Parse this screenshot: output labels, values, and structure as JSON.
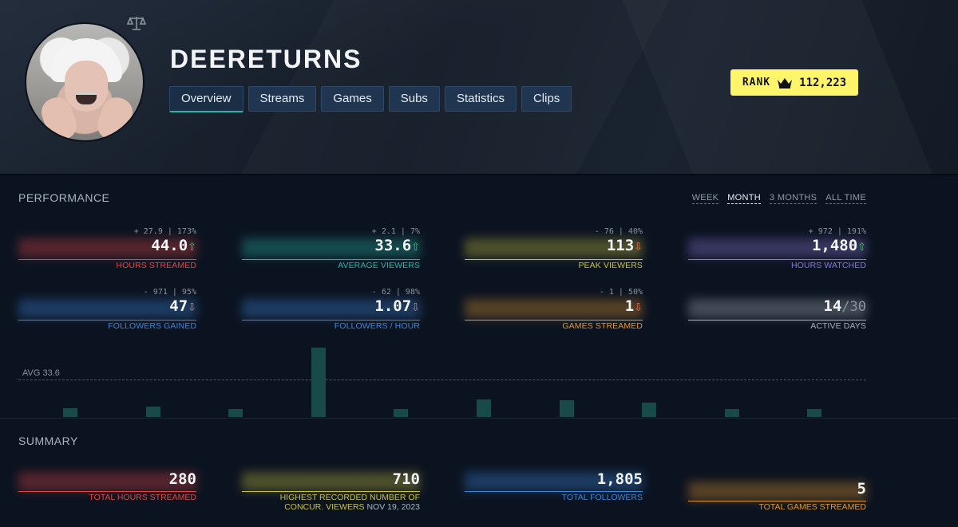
{
  "channel": {
    "name": "DEERETURNS"
  },
  "tabs": [
    {
      "label": "Overview",
      "active": true
    },
    {
      "label": "Streams"
    },
    {
      "label": "Games"
    },
    {
      "label": "Subs"
    },
    {
      "label": "Statistics"
    },
    {
      "label": "Clips"
    }
  ],
  "rank": {
    "label": "RANK",
    "value": "112,223",
    "icon": "crown-icon"
  },
  "performance": {
    "title": "PERFORMANCE",
    "ranges": [
      "WEEK",
      "MONTH",
      "3 MONTHS",
      "ALL TIME"
    ],
    "active_range": "MONTH",
    "stats": [
      {
        "label": "HOURS STREAMED",
        "value": "44.0",
        "delta": "+ 27.9 | 173%",
        "trend": "up",
        "color": "#e04646"
      },
      {
        "label": "AVERAGE VIEWERS",
        "value": "33.6",
        "delta": "+ 2.1 | 7%",
        "trend": "up",
        "color": "#26b4a6"
      },
      {
        "label": "PEAK VIEWERS",
        "value": "113",
        "delta": "- 76 | 40%",
        "trend": "down",
        "color": "#c9c23e"
      },
      {
        "label": "HOURS WATCHED",
        "value": "1,480",
        "delta": "+ 972 | 191%",
        "trend": "up",
        "color": "#8a78d8"
      },
      {
        "label": "FOLLOWERS GAINED",
        "value": "47",
        "delta": "- 971 | 95%",
        "trend": "down",
        "color": "#3d86d8"
      },
      {
        "label": "FOLLOWERS / HOUR",
        "value": "1.07",
        "delta": "- 62 | 98%",
        "trend": "down",
        "color": "#3d86d8"
      },
      {
        "label": "GAMES STREAMED",
        "value": "1",
        "delta": "- 1 | 50%",
        "trend": "down",
        "color": "#e0962e"
      },
      {
        "label": "ACTIVE DAYS",
        "value": "14",
        "value_sub": "/30",
        "delta": "",
        "trend": "",
        "color": "#a7b0bb"
      }
    ],
    "arrows": {
      "up": "⇧",
      "down": "⇩"
    }
  },
  "chart_data": {
    "type": "bar",
    "title": "",
    "xlabel": "",
    "ylabel": "",
    "average_label": "AVG 33.6",
    "average": 33.6,
    "values": [
      8,
      9,
      7,
      62,
      7,
      16,
      15,
      13,
      7,
      7
    ],
    "ylim": [
      0,
      70
    ],
    "grid": false,
    "color": "#174a48"
  },
  "summary": {
    "title": "SUMMARY",
    "items": [
      {
        "label": "TOTAL HOURS STREAMED",
        "value": "280",
        "color": "#e04646"
      },
      {
        "label": "HIGHEST RECORDED NUMBER OF",
        "label2": "CONCUR. VIEWERS",
        "date": "NOV 19, 2023",
        "value": "710",
        "color": "#c9c23e",
        "date_color": "#aab4c0"
      },
      {
        "label": "TOTAL FOLLOWERS",
        "value": "1,805",
        "color": "#3d86d8"
      },
      {
        "label": "TOTAL GAMES STREAMED",
        "value": "5",
        "color": "#e0962e"
      }
    ]
  }
}
